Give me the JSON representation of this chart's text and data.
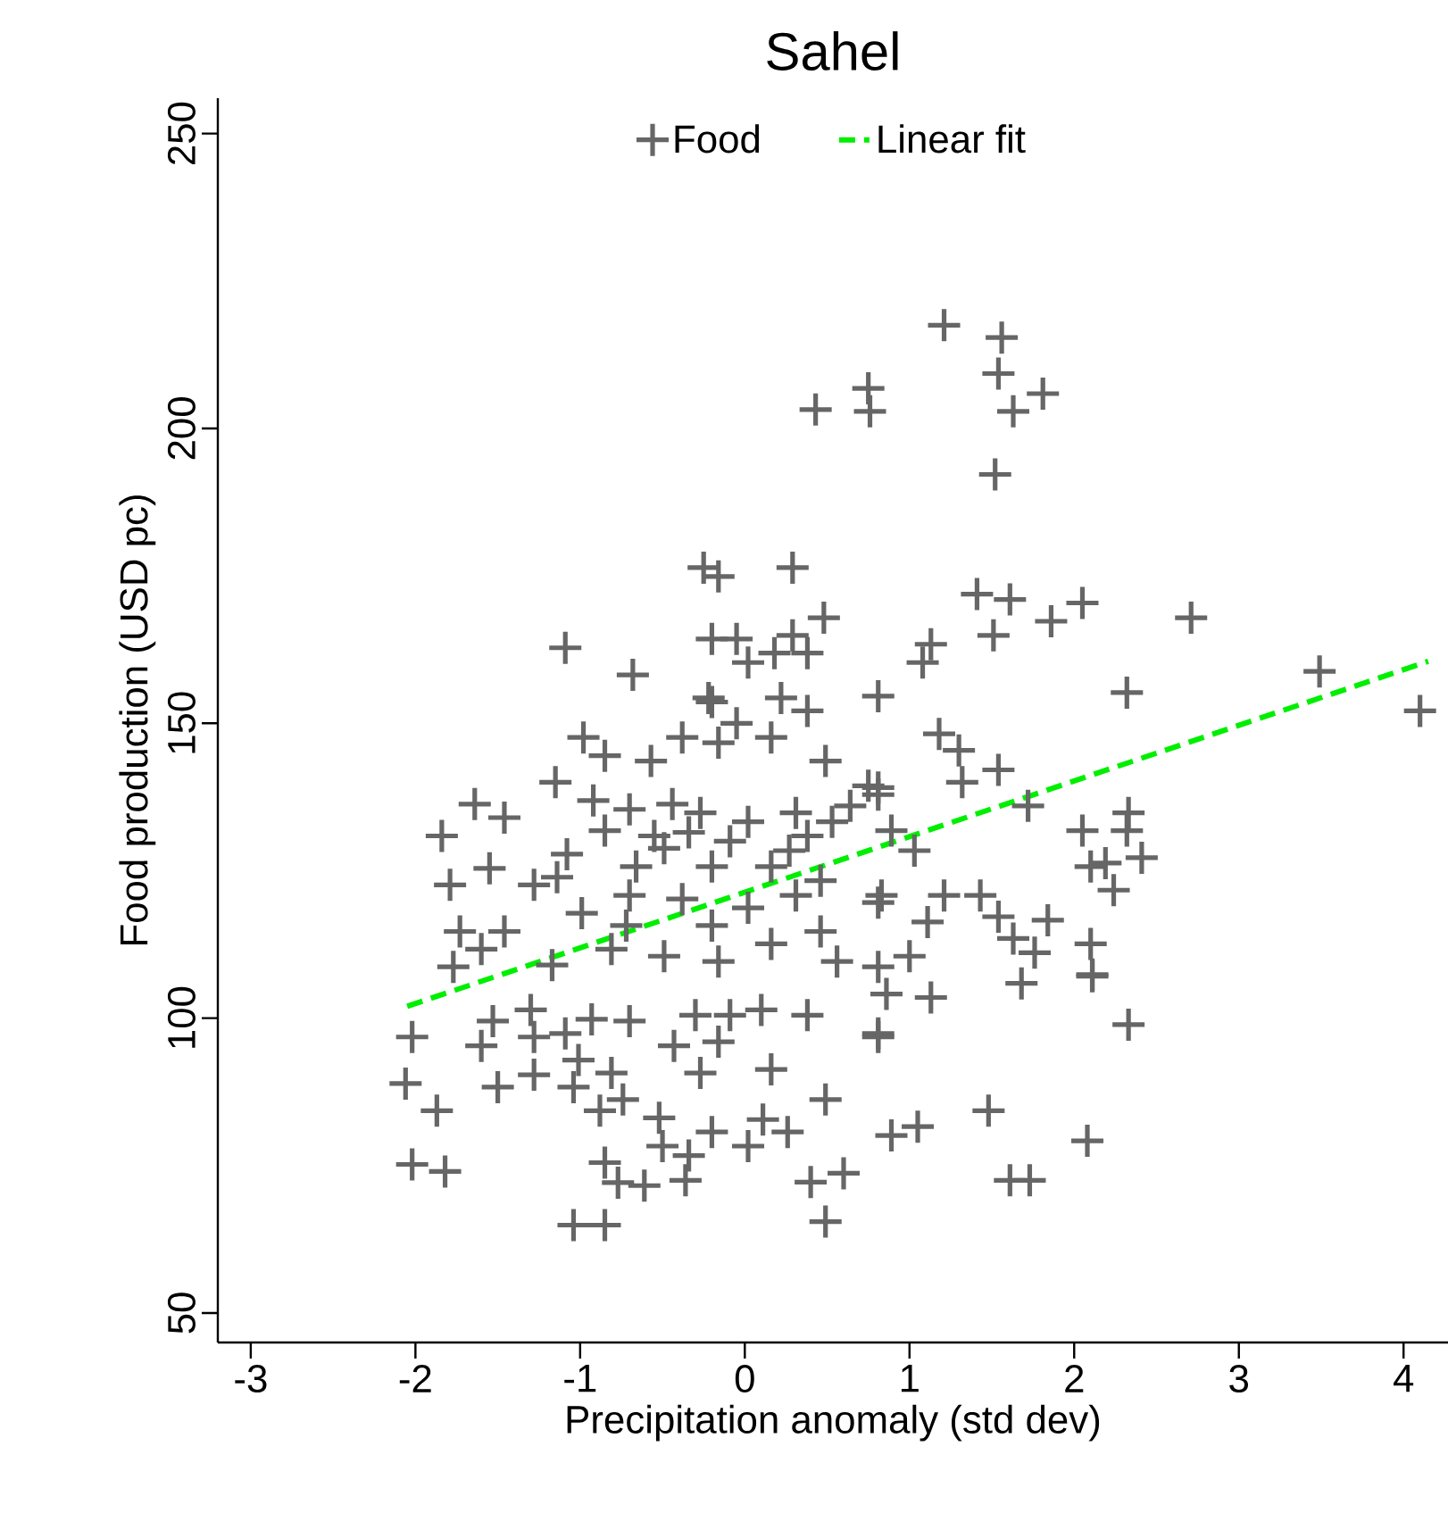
{
  "chart_data": {
    "type": "scatter",
    "title": "Sahel",
    "xlabel": "Precipitation anomaly (std dev)",
    "ylabel": "Food production (USD pc)",
    "xlim": [
      -3.2,
      4.27
    ],
    "ylim": [
      45,
      256
    ],
    "xticks": [
      -3,
      -2,
      -1,
      0,
      1,
      2,
      3,
      4
    ],
    "yticks": [
      50,
      100,
      150,
      200,
      250
    ],
    "legend": "top",
    "grid": false,
    "series": [
      {
        "name": "Food",
        "marker": "cross",
        "color": "#666666",
        "x": [
          1.21,
          1.56,
          1.54,
          1.81,
          1.63,
          0.75,
          0.76,
          0.43,
          1.52,
          -0.25,
          -0.16,
          0.29,
          -1.09,
          -0.68,
          0.48,
          -0.2,
          -0.05,
          0.29,
          0.02,
          0.18,
          0.38,
          1.41,
          1.61,
          2.05,
          1.86,
          1.51,
          2.71,
          1.13,
          1.08,
          2.32,
          3.49,
          0.81,
          4.1,
          1.54,
          1.32,
          1.3,
          1.18,
          1.72,
          2.05,
          2.33,
          2.32,
          2.41,
          2.1,
          2.19,
          2.24,
          1.03,
          0.89,
          0.81,
          0.83,
          1.21,
          1.43,
          1.54,
          1.84,
          1.63,
          1.76,
          2.1,
          2.11,
          1.11,
          1.0,
          1.68,
          2.11,
          2.33,
          1.48,
          0.89,
          1.05,
          2.08,
          1.61,
          1.73,
          0.81,
          1.13,
          0.86,
          -2.02,
          -2.06,
          -1.87,
          -2.02,
          -1.82,
          -1.6,
          -1.53,
          -1.5,
          -1.3,
          -1.28,
          -1.28,
          -1.09,
          -1.01,
          -1.04,
          -0.81,
          -0.88,
          -0.74,
          -0.52,
          -0.5,
          -0.85,
          -0.77,
          -0.61,
          -0.36,
          -0.34,
          -1.04,
          -0.85,
          -0.2,
          0.02,
          0.11,
          0.26,
          0.49,
          0.4,
          0.6,
          0.49,
          0.16,
          -0.27,
          -0.43,
          -0.16,
          -0.93,
          -0.7,
          -0.3,
          -0.09,
          0.1,
          0.38,
          0.81,
          -1.84,
          -1.64,
          -1.46,
          -1.55,
          -1.79,
          -1.28,
          -1.73,
          -1.46,
          -1.6,
          -1.77,
          -1.15,
          -0.98,
          -0.85,
          -0.57,
          -0.38,
          -0.2,
          0.22,
          0.38,
          -0.05,
          -0.16,
          0.16,
          0.49,
          0.75,
          -0.92,
          -0.7,
          -0.44,
          -0.27,
          0.02,
          0.31,
          0.64,
          -0.85,
          -0.55,
          -0.34,
          -0.09,
          0.38,
          -1.08,
          -0.66,
          -0.49,
          -0.2,
          0.16,
          0.27,
          0.53,
          0.81,
          -1.14,
          -0.7,
          -0.38,
          0.02,
          0.31,
          0.46,
          0.81,
          -0.99,
          -0.72,
          -0.2,
          0.16,
          0.46,
          -1.17,
          -0.81,
          -0.49,
          -0.16,
          0.56,
          0.81,
          -0.22
        ],
        "values": [
          217.5,
          215.4,
          209.3,
          205.9,
          202.9,
          206.8,
          202.9,
          203.2,
          192.2,
          176.4,
          174.9,
          176.4,
          162.8,
          158.2,
          167.9,
          164.3,
          164.3,
          164.9,
          160.3,
          161.9,
          161.9,
          171.9,
          171,
          170.4,
          167.3,
          164.9,
          167.9,
          163.4,
          160.3,
          155.2,
          158.8,
          154.6,
          152.1,
          142.1,
          140,
          145.4,
          148.2,
          136,
          131.8,
          134.8,
          131.8,
          127.2,
          125.7,
          126.3,
          121.7,
          128.4,
          131.8,
          139.1,
          120.8,
          120.8,
          120.8,
          117.2,
          116.6,
          113.5,
          111.1,
          112.6,
          107.4,
          116.3,
          110.5,
          105.9,
          107.1,
          98.9,
          84.3,
          80.1,
          81.6,
          79.2,
          72.5,
          72.5,
          97.4,
          103.5,
          104.1,
          96.8,
          88.9,
          84.3,
          75.2,
          74,
          95.3,
          99.5,
          88.3,
          101.4,
          96.8,
          90.4,
          97.4,
          92.9,
          88.3,
          90.7,
          84.3,
          86.2,
          83.1,
          78.3,
          75.5,
          72.1,
          71.6,
          72.5,
          76.7,
          64.9,
          64.9,
          80.7,
          78.3,
          82.8,
          80.7,
          86.2,
          72.2,
          73.7,
          65.5,
          91.3,
          90.7,
          95.3,
          96,
          99.8,
          99.5,
          100.5,
          100.5,
          101.4,
          100.5,
          96.8,
          130.9,
          136.3,
          134,
          125.4,
          122.6,
          122.6,
          114.7,
          114.7,
          111.7,
          108.7,
          140,
          147.6,
          144.5,
          143.6,
          147.6,
          153.6,
          154.3,
          152.1,
          150,
          146.7,
          147.6,
          143.6,
          139.4,
          136.9,
          135.4,
          136.3,
          134.8,
          133.3,
          134.8,
          136,
          131.8,
          130.9,
          131.5,
          130,
          130.9,
          127.8,
          125.7,
          128.8,
          125.7,
          125.7,
          128.4,
          133.3,
          137.9,
          123.9,
          120.8,
          120.2,
          118.7,
          120.8,
          123.3,
          119.6,
          117.8,
          115.7,
          115.7,
          112.6,
          114.7,
          109,
          111.7,
          110.5,
          109.6,
          109.6,
          108.7,
          154.3
        ]
      },
      {
        "name": "Linear fit",
        "type": "line",
        "line_style": "dashed",
        "marker": "none",
        "color": "#00ee00",
        "x": [
          -2.05,
          4.15
        ],
        "values": [
          102,
          160.5
        ]
      }
    ]
  }
}
